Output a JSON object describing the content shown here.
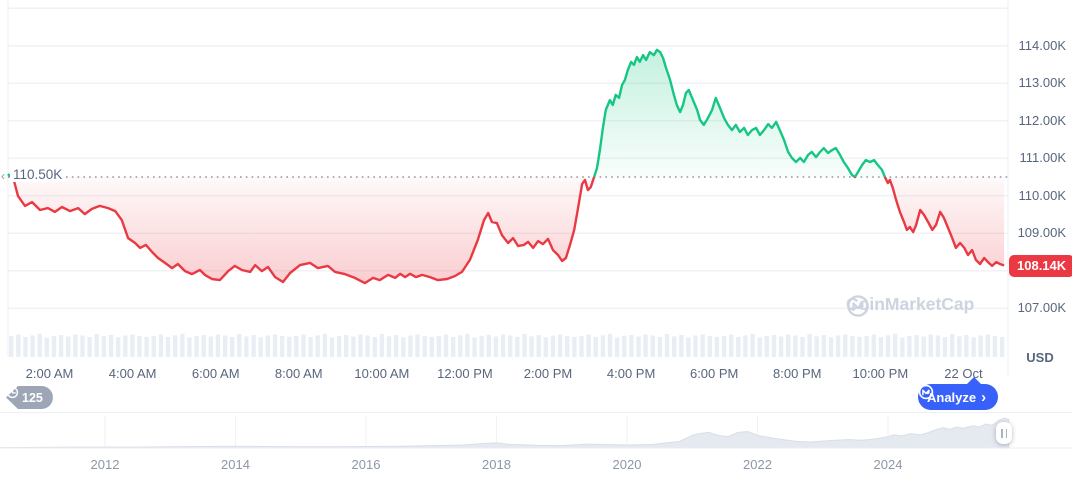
{
  "header": {
    "watermark": "CoinMarketCap"
  },
  "axis": {
    "baseline_label": "110.50K",
    "baseline_value": 110500,
    "current_price_label": "108.14K",
    "current_price_value": 108140,
    "currency": "USD",
    "y_labels": [
      {
        "label": "114.00K",
        "value": 114000
      },
      {
        "label": "113.00K",
        "value": 113000
      },
      {
        "label": "112.00K",
        "value": 112000
      },
      {
        "label": "111.00K",
        "value": 111000
      },
      {
        "label": "110.00K",
        "value": 110000
      },
      {
        "label": "109.00K",
        "value": 109000
      },
      {
        "label": "107.00K",
        "value": 107000
      }
    ],
    "gridline_values": [
      115000,
      114000,
      113000,
      112000,
      111000,
      110000,
      109000,
      108000,
      107000
    ],
    "x_labels": [
      {
        "label": "2:00 AM",
        "t": 2
      },
      {
        "label": "4:00 AM",
        "t": 4
      },
      {
        "label": "6:00 AM",
        "t": 6
      },
      {
        "label": "8:00 AM",
        "t": 8
      },
      {
        "label": "10:00 AM",
        "t": 10
      },
      {
        "label": "12:00 PM",
        "t": 12
      },
      {
        "label": "2:00 PM",
        "t": 14
      },
      {
        "label": "4:00 PM",
        "t": 16
      },
      {
        "label": "6:00 PM",
        "t": 18
      },
      {
        "label": "8:00 PM",
        "t": 20
      },
      {
        "label": "10:00 PM",
        "t": 22
      },
      {
        "label": "22 Oct",
        "t": 24
      }
    ],
    "year_labels": [
      {
        "label": "2012",
        "year": 2012
      },
      {
        "label": "2014",
        "year": 2014
      },
      {
        "label": "2016",
        "year": 2016
      },
      {
        "label": "2018",
        "year": 2018
      },
      {
        "label": "2020",
        "year": 2020
      },
      {
        "label": "2022",
        "year": 2022
      },
      {
        "label": "2024",
        "year": 2024
      }
    ]
  },
  "controls": {
    "history_count": "125",
    "analyze_label": "Analyze",
    "analyze_chevron": "›"
  },
  "colors": {
    "up": "#16c784",
    "down": "#ea3943",
    "accent": "#3861fb",
    "axis_text": "#58667e",
    "grid": "#f0f2f5",
    "border": "#eceff4",
    "volume": "#e9eef5",
    "mini_fill": "#e5e9f0",
    "mini_stroke": "#d9dfe8",
    "dotted": "#8b95a9",
    "watermark": "#ccd4e0"
  },
  "chart_data": {
    "type": "line",
    "title": "BTC/USD 24h price chart with previous-close baseline",
    "x_unit": "hours since midnight 21 Oct",
    "x_range": [
      1.0,
      25.0
    ],
    "y_range_visible": [
      106350,
      115200
    ],
    "baseline": 110500,
    "last_price": 108140,
    "legend_position": "none",
    "grid": true,
    "series": [
      [
        1.0,
        110580
      ],
      [
        1.14,
        110420
      ],
      [
        1.24,
        109990
      ],
      [
        1.41,
        109730
      ],
      [
        1.58,
        109830
      ],
      [
        1.77,
        109620
      ],
      [
        1.96,
        109670
      ],
      [
        2.13,
        109570
      ],
      [
        2.3,
        109700
      ],
      [
        2.49,
        109590
      ],
      [
        2.69,
        109670
      ],
      [
        2.85,
        109510
      ],
      [
        3.02,
        109650
      ],
      [
        3.21,
        109730
      ],
      [
        3.41,
        109670
      ],
      [
        3.58,
        109590
      ],
      [
        3.74,
        109350
      ],
      [
        3.89,
        108870
      ],
      [
        4.06,
        108740
      ],
      [
        4.18,
        108610
      ],
      [
        4.32,
        108690
      ],
      [
        4.47,
        108500
      ],
      [
        4.61,
        108340
      ],
      [
        4.78,
        108210
      ],
      [
        4.95,
        108070
      ],
      [
        5.09,
        108180
      ],
      [
        5.26,
        107990
      ],
      [
        5.43,
        107910
      ],
      [
        5.62,
        108020
      ],
      [
        5.74,
        107890
      ],
      [
        5.91,
        107780
      ],
      [
        6.1,
        107750
      ],
      [
        6.3,
        107990
      ],
      [
        6.46,
        108130
      ],
      [
        6.63,
        108020
      ],
      [
        6.83,
        107970
      ],
      [
        6.95,
        108150
      ],
      [
        7.11,
        107990
      ],
      [
        7.26,
        108100
      ],
      [
        7.43,
        107830
      ],
      [
        7.62,
        107700
      ],
      [
        7.79,
        107940
      ],
      [
        8.03,
        108150
      ],
      [
        8.27,
        108210
      ],
      [
        8.46,
        108070
      ],
      [
        8.7,
        108130
      ],
      [
        8.87,
        107970
      ],
      [
        9.11,
        107910
      ],
      [
        9.35,
        107810
      ],
      [
        9.59,
        107670
      ],
      [
        9.79,
        107810
      ],
      [
        9.95,
        107750
      ],
      [
        10.15,
        107890
      ],
      [
        10.32,
        107810
      ],
      [
        10.44,
        107920
      ],
      [
        10.56,
        107830
      ],
      [
        10.68,
        107920
      ],
      [
        10.82,
        107830
      ],
      [
        10.97,
        107890
      ],
      [
        11.16,
        107830
      ],
      [
        11.35,
        107750
      ],
      [
        11.57,
        107780
      ],
      [
        11.76,
        107860
      ],
      [
        11.93,
        107970
      ],
      [
        12.12,
        108290
      ],
      [
        12.31,
        108820
      ],
      [
        12.46,
        109350
      ],
      [
        12.56,
        109540
      ],
      [
        12.65,
        109300
      ],
      [
        12.77,
        109270
      ],
      [
        12.89,
        108950
      ],
      [
        13.04,
        108740
      ],
      [
        13.16,
        108870
      ],
      [
        13.28,
        108660
      ],
      [
        13.42,
        108690
      ],
      [
        13.52,
        108770
      ],
      [
        13.64,
        108610
      ],
      [
        13.76,
        108790
      ],
      [
        13.88,
        108710
      ],
      [
        14.0,
        108850
      ],
      [
        14.12,
        108550
      ],
      [
        14.24,
        108420
      ],
      [
        14.34,
        108260
      ],
      [
        14.43,
        108340
      ],
      [
        14.53,
        108690
      ],
      [
        14.63,
        109090
      ],
      [
        14.72,
        109650
      ],
      [
        14.82,
        110310
      ],
      [
        14.89,
        110420
      ],
      [
        14.96,
        110150
      ],
      [
        15.03,
        110230
      ],
      [
        15.11,
        110500
      ],
      [
        15.18,
        110740
      ],
      [
        15.25,
        111220
      ],
      [
        15.32,
        111810
      ],
      [
        15.39,
        112290
      ],
      [
        15.49,
        112550
      ],
      [
        15.56,
        112420
      ],
      [
        15.63,
        112690
      ],
      [
        15.71,
        112610
      ],
      [
        15.78,
        112950
      ],
      [
        15.85,
        113090
      ],
      [
        15.92,
        113350
      ],
      [
        16.0,
        113570
      ],
      [
        16.07,
        113490
      ],
      [
        16.14,
        113700
      ],
      [
        16.21,
        113570
      ],
      [
        16.29,
        113750
      ],
      [
        16.36,
        113620
      ],
      [
        16.45,
        113830
      ],
      [
        16.55,
        113750
      ],
      [
        16.62,
        113890
      ],
      [
        16.7,
        113830
      ],
      [
        16.77,
        113670
      ],
      [
        16.84,
        113410
      ],
      [
        16.94,
        113090
      ],
      [
        17.03,
        112690
      ],
      [
        17.1,
        112420
      ],
      [
        17.18,
        112230
      ],
      [
        17.25,
        112420
      ],
      [
        17.32,
        112740
      ],
      [
        17.39,
        112820
      ],
      [
        17.49,
        112550
      ],
      [
        17.59,
        112290
      ],
      [
        17.66,
        112020
      ],
      [
        17.75,
        111890
      ],
      [
        17.85,
        112070
      ],
      [
        17.95,
        112290
      ],
      [
        18.04,
        112610
      ],
      [
        18.14,
        112340
      ],
      [
        18.24,
        112070
      ],
      [
        18.33,
        111890
      ],
      [
        18.43,
        111750
      ],
      [
        18.52,
        111890
      ],
      [
        18.62,
        111700
      ],
      [
        18.72,
        111810
      ],
      [
        18.81,
        111620
      ],
      [
        18.91,
        111750
      ],
      [
        19.01,
        111810
      ],
      [
        19.1,
        111620
      ],
      [
        19.2,
        111750
      ],
      [
        19.3,
        111910
      ],
      [
        19.39,
        111810
      ],
      [
        19.49,
        111970
      ],
      [
        19.58,
        111750
      ],
      [
        19.68,
        111490
      ],
      [
        19.78,
        111170
      ],
      [
        19.87,
        111010
      ],
      [
        19.97,
        110900
      ],
      [
        20.07,
        111010
      ],
      [
        20.16,
        110900
      ],
      [
        20.26,
        111090
      ],
      [
        20.35,
        111170
      ],
      [
        20.45,
        111030
      ],
      [
        20.55,
        111170
      ],
      [
        20.64,
        111270
      ],
      [
        20.74,
        111140
      ],
      [
        20.84,
        111220
      ],
      [
        20.93,
        111270
      ],
      [
        21.03,
        111090
      ],
      [
        21.12,
        110900
      ],
      [
        21.22,
        110740
      ],
      [
        21.32,
        110550
      ],
      [
        21.39,
        110500
      ],
      [
        21.46,
        110630
      ],
      [
        21.56,
        110820
      ],
      [
        21.65,
        110950
      ],
      [
        21.75,
        110900
      ],
      [
        21.85,
        110950
      ],
      [
        21.94,
        110820
      ],
      [
        22.04,
        110690
      ],
      [
        22.11,
        110500
      ],
      [
        22.18,
        110340
      ],
      [
        22.23,
        110420
      ],
      [
        22.3,
        110210
      ],
      [
        22.38,
        109890
      ],
      [
        22.47,
        109570
      ],
      [
        22.57,
        109300
      ],
      [
        22.64,
        109090
      ],
      [
        22.71,
        109170
      ],
      [
        22.79,
        109030
      ],
      [
        22.86,
        109220
      ],
      [
        22.96,
        109620
      ],
      [
        23.05,
        109490
      ],
      [
        23.15,
        109300
      ],
      [
        23.25,
        109090
      ],
      [
        23.34,
        109220
      ],
      [
        23.44,
        109570
      ],
      [
        23.53,
        109410
      ],
      [
        23.63,
        109140
      ],
      [
        23.73,
        108870
      ],
      [
        23.82,
        108610
      ],
      [
        23.92,
        108740
      ],
      [
        24.02,
        108610
      ],
      [
        24.11,
        108420
      ],
      [
        24.21,
        108550
      ],
      [
        24.3,
        108290
      ],
      [
        24.4,
        108180
      ],
      [
        24.5,
        108340
      ],
      [
        24.59,
        108230
      ],
      [
        24.69,
        108130
      ],
      [
        24.79,
        108230
      ],
      [
        24.88,
        108180
      ],
      [
        24.98,
        108140
      ]
    ],
    "volume": {
      "bars": 140,
      "pattern": [
        0.84,
        0.9,
        0.8,
        0.87,
        0.93,
        0.78,
        0.85,
        0.88,
        0.82,
        0.9,
        0.86,
        0.8,
        0.92,
        0.83,
        0.88,
        0.79,
        0.86,
        0.9,
        0.84,
        0.81
      ]
    },
    "mini_chart": {
      "type": "area",
      "x_unit": "year",
      "series": [
        [
          2010.4,
          0.015
        ],
        [
          2011,
          0.02
        ],
        [
          2011.5,
          0.03
        ],
        [
          2012,
          0.03
        ],
        [
          2012.5,
          0.03
        ],
        [
          2013,
          0.04
        ],
        [
          2013.5,
          0.05
        ],
        [
          2014,
          0.06
        ],
        [
          2014.5,
          0.05
        ],
        [
          2015,
          0.04
        ],
        [
          2015.5,
          0.04
        ],
        [
          2016,
          0.05
        ],
        [
          2016.5,
          0.06
        ],
        [
          2017,
          0.08
        ],
        [
          2017.5,
          0.1
        ],
        [
          2017.8,
          0.15
        ],
        [
          2018,
          0.17
        ],
        [
          2018.2,
          0.12
        ],
        [
          2018.6,
          0.09
        ],
        [
          2019,
          0.08
        ],
        [
          2019.4,
          0.13
        ],
        [
          2019.6,
          0.12
        ],
        [
          2020,
          0.1
        ],
        [
          2020.4,
          0.12
        ],
        [
          2020.8,
          0.22
        ],
        [
          2021,
          0.42
        ],
        [
          2021.1,
          0.48
        ],
        [
          2021.25,
          0.52
        ],
        [
          2021.4,
          0.42
        ],
        [
          2021.55,
          0.38
        ],
        [
          2021.7,
          0.52
        ],
        [
          2021.85,
          0.55
        ],
        [
          2022,
          0.42
        ],
        [
          2022.2,
          0.34
        ],
        [
          2022.4,
          0.28
        ],
        [
          2022.6,
          0.22
        ],
        [
          2022.8,
          0.2
        ],
        [
          2023,
          0.23
        ],
        [
          2023.2,
          0.26
        ],
        [
          2023.4,
          0.28
        ],
        [
          2023.6,
          0.26
        ],
        [
          2023.8,
          0.3
        ],
        [
          2024,
          0.38
        ],
        [
          2024.1,
          0.44
        ],
        [
          2024.2,
          0.4
        ],
        [
          2024.35,
          0.48
        ],
        [
          2024.5,
          0.44
        ],
        [
          2024.6,
          0.5
        ],
        [
          2024.75,
          0.62
        ],
        [
          2024.85,
          0.68
        ],
        [
          2024.95,
          0.62
        ],
        [
          2025.05,
          0.7
        ],
        [
          2025.15,
          0.66
        ],
        [
          2025.3,
          0.74
        ],
        [
          2025.4,
          0.7
        ],
        [
          2025.5,
          0.8
        ],
        [
          2025.6,
          0.76
        ],
        [
          2025.7,
          0.92
        ],
        [
          2025.78,
          1.0
        ],
        [
          2025.85,
          0.95
        ]
      ]
    }
  }
}
